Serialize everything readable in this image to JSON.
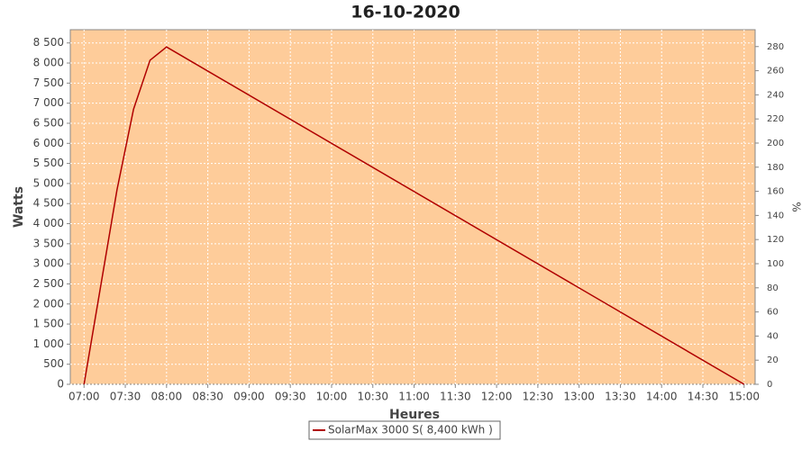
{
  "chart_data": {
    "type": "line",
    "title": "16-10-2020",
    "x_label": "Heures",
    "y_label": "Watts",
    "y2_label": "%",
    "x": [
      "07:00",
      "07:24",
      "07:36",
      "07:48",
      "08:00",
      "15:00"
    ],
    "series": [
      {
        "name": "SolarMax 3000 S( 8,400 kWh )",
        "color": "#b00000",
        "values": [
          0,
          4850,
          6850,
          8070,
          8400,
          0
        ]
      }
    ],
    "xlim": [
      "06:50",
      "15:08"
    ],
    "xticks": [
      "07:00",
      "07:30",
      "08:00",
      "08:30",
      "09:00",
      "09:30",
      "10:00",
      "10:30",
      "11:00",
      "11:30",
      "12:00",
      "12:30",
      "13:00",
      "13:30",
      "14:00",
      "14:30",
      "15:00"
    ],
    "ylim": [
      0,
      8830
    ],
    "yticks": [
      0,
      500,
      {
        "value": 1000,
        "label": "1 000"
      },
      {
        "value": 1500,
        "label": "1 500"
      },
      {
        "value": 2000,
        "label": "2 000"
      },
      {
        "value": 2500,
        "label": "2 500"
      },
      {
        "value": 3000,
        "label": "3 000"
      },
      {
        "value": 3500,
        "label": "3 500"
      },
      {
        "value": 4000,
        "label": "4 000"
      },
      {
        "value": 4500,
        "label": "4 500"
      },
      {
        "value": 5000,
        "label": "5 000"
      },
      {
        "value": 5500,
        "label": "5 500"
      },
      {
        "value": 6000,
        "label": "6 000"
      },
      {
        "value": 6500,
        "label": "6 500"
      },
      {
        "value": 7000,
        "label": "7 000"
      },
      {
        "value": 7500,
        "label": "7 500"
      },
      {
        "value": 8000,
        "label": "8 000"
      },
      {
        "value": 8500,
        "label": "8 500"
      }
    ],
    "y2lim": [
      0,
      294
    ],
    "y2ticks": [
      0,
      20,
      40,
      60,
      80,
      100,
      120,
      140,
      160,
      180,
      200,
      220,
      240,
      260,
      280
    ],
    "grid": true,
    "plot_background": "#fecc9a"
  }
}
